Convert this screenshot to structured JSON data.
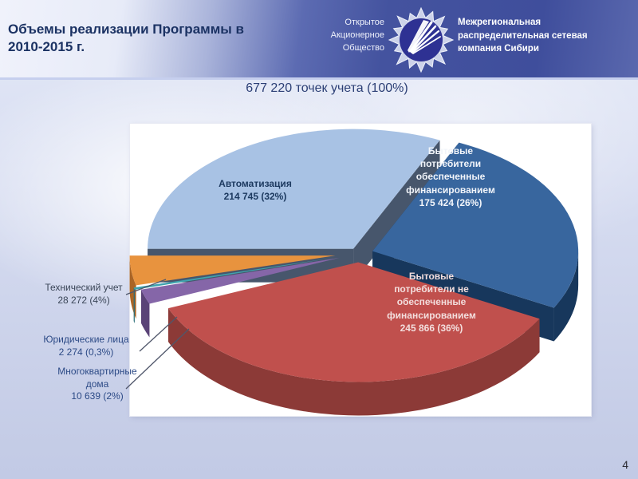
{
  "header": {
    "title": "Объемы реализации Программы в 2010-2015 г.",
    "oao_lines": [
      "Открытое",
      "Акционерное",
      "Общество"
    ],
    "company_name": "Межрегиональная распределительная сетевая компания Сибири"
  },
  "footer": {
    "page_number": "4"
  },
  "colors": {
    "banner": "#4254a4",
    "title_text": "#1b3263",
    "subtitle_text": "#2c3f75",
    "background": "#cdd4ec",
    "panel": "#ffffff",
    "logo_circle": "#2e3193"
  },
  "chart_data": {
    "type": "pie",
    "style": "3d-exploded",
    "title": "677 220 точек учета (100%)",
    "total_points": 677220,
    "total_label": "677 220 точек учета (100%)",
    "legend_position": "labels-on-slices-and-callouts",
    "slices": [
      {
        "label": "Автоматизация",
        "value": 214745,
        "pct": 32,
        "value_label": "214 745 (32%)",
        "color": "#a8c2e4",
        "side_color": "#47566c",
        "explode": 0.05,
        "label_color": "#1d3a60"
      },
      {
        "label": "Бытовые потребители обеспеченные финансированием",
        "value": 175424,
        "pct": 26,
        "value_label": "175 424 (26%)",
        "color": "#38669e",
        "side_color": "#17375c",
        "explode": 0.07,
        "label_color": "#f2f5fa"
      },
      {
        "label": "Бытовые потребители не обеспеченные финансированием",
        "value": 245866,
        "pct": 36,
        "value_label": "245 866 (36%)",
        "color": "#c0504d",
        "side_color": "#8c3a37",
        "explode": 0.07,
        "label_color": "#f3dedd"
      },
      {
        "label": "Многоквартирные дома",
        "value": 10639,
        "pct": 2,
        "value_label": "10 639 (2%)",
        "color": "#8566a8",
        "side_color": "#5a4377",
        "explode": 0.1,
        "label_color": "#2c4a86"
      },
      {
        "label": "Юридические лица",
        "value": 2274,
        "pct": 0.3,
        "value_label": "2 274 (0,3%)",
        "color": "#3fa3ae",
        "side_color": "#2a6e78",
        "explode": 0.13,
        "label_color": "#2c4a86"
      },
      {
        "label": "Технический учет",
        "value": 28272,
        "pct": 4,
        "value_label": "28 272 (4%)",
        "color": "#e8933e",
        "side_color": "#aa6526",
        "explode": 0.115,
        "label_color": "#3b4658"
      }
    ]
  }
}
